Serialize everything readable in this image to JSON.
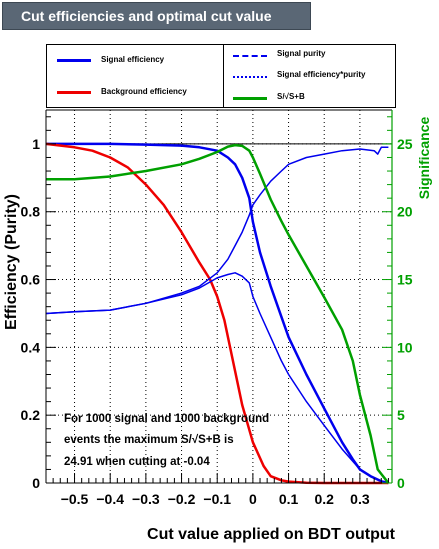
{
  "title": "Cut efficiencies and optimal cut value",
  "legend": {
    "signal_efficiency": "Signal efficiency",
    "background_efficiency": "Background efficiency",
    "signal_purity": "Signal purity",
    "signal_eff_purity": "Signal efficiency*purity",
    "significance": "S/√S+B"
  },
  "colors": {
    "signal": "#0000ee",
    "background": "#ee0000",
    "significance": "#00a000"
  },
  "annotation": [
    "For 1000 signal and 1000 background",
    "events the maximum S/√S+B is",
    "24.91 when cutting at -0.04"
  ],
  "chart_data": {
    "type": "line",
    "xlabel": "Cut value applied on BDT output",
    "ylabel": "Efficiency (Purity)",
    "y2label": "Significance",
    "xlim": [
      -0.58,
      0.39
    ],
    "ylim": [
      0,
      1.1
    ],
    "y2lim": [
      0,
      27.5
    ],
    "x_ticks": [
      "−0.5",
      "−0.4",
      "−0.3",
      "−0.2",
      "−0.1",
      "0",
      "0.1",
      "0.2",
      "0.3"
    ],
    "x_tick_values": [
      -0.5,
      -0.4,
      -0.3,
      -0.2,
      -0.1,
      0,
      0.1,
      0.2,
      0.3
    ],
    "y_ticks": [
      "0",
      "0.2",
      "0.4",
      "0.6",
      "0.8",
      "1"
    ],
    "y_tick_values": [
      0,
      0.2,
      0.4,
      0.6,
      0.8,
      1
    ],
    "y2_ticks": [
      "0",
      "5",
      "10",
      "15",
      "20",
      "25"
    ],
    "y2_tick_values": [
      0,
      5,
      10,
      15,
      20,
      25
    ],
    "grid": true,
    "series": [
      {
        "name": "Signal efficiency",
        "axis": "left",
        "x": [
          -0.58,
          -0.4,
          -0.3,
          -0.2,
          -0.15,
          -0.1,
          -0.07,
          -0.05,
          -0.03,
          -0.01,
          0.0,
          0.02,
          0.05,
          0.08,
          0.1,
          0.15,
          0.2,
          0.25,
          0.28,
          0.3,
          0.33,
          0.36,
          0.38
        ],
        "y": [
          1.0,
          1.0,
          0.998,
          0.995,
          0.99,
          0.98,
          0.96,
          0.94,
          0.9,
          0.84,
          0.77,
          0.68,
          0.58,
          0.49,
          0.43,
          0.32,
          0.22,
          0.12,
          0.07,
          0.04,
          0.02,
          0.005,
          0.0
        ]
      },
      {
        "name": "Background efficiency",
        "axis": "left",
        "x": [
          -0.58,
          -0.5,
          -0.45,
          -0.4,
          -0.35,
          -0.3,
          -0.25,
          -0.2,
          -0.15,
          -0.12,
          -0.1,
          -0.08,
          -0.05,
          -0.03,
          0.0,
          0.03,
          0.05,
          0.08,
          0.1,
          0.15,
          0.2,
          0.38
        ],
        "y": [
          1.0,
          0.99,
          0.98,
          0.96,
          0.93,
          0.88,
          0.82,
          0.74,
          0.65,
          0.6,
          0.55,
          0.48,
          0.33,
          0.23,
          0.12,
          0.05,
          0.02,
          0.008,
          0.004,
          0.001,
          0.0,
          0.0
        ]
      },
      {
        "name": "Signal purity",
        "axis": "left",
        "x": [
          -0.58,
          -0.5,
          -0.4,
          -0.3,
          -0.2,
          -0.15,
          -0.1,
          -0.07,
          -0.05,
          -0.03,
          -0.01,
          0.0,
          0.02,
          0.05,
          0.08,
          0.1,
          0.15,
          0.2,
          0.25,
          0.3,
          0.34,
          0.35,
          0.36,
          0.38
        ],
        "y": [
          0.5,
          0.505,
          0.51,
          0.53,
          0.56,
          0.58,
          0.62,
          0.66,
          0.7,
          0.74,
          0.79,
          0.82,
          0.85,
          0.89,
          0.92,
          0.94,
          0.96,
          0.97,
          0.98,
          0.985,
          0.98,
          0.97,
          0.99,
          0.99
        ]
      },
      {
        "name": "Signal efficiency*purity",
        "axis": "left",
        "x": [
          -0.58,
          -0.5,
          -0.4,
          -0.3,
          -0.2,
          -0.15,
          -0.1,
          -0.07,
          -0.05,
          -0.03,
          -0.01,
          0.0,
          0.02,
          0.05,
          0.08,
          0.1,
          0.15,
          0.2,
          0.25,
          0.3,
          0.33,
          0.36,
          0.38
        ],
        "y": [
          0.5,
          0.505,
          0.51,
          0.53,
          0.555,
          0.575,
          0.605,
          0.615,
          0.62,
          0.61,
          0.59,
          0.55,
          0.5,
          0.43,
          0.36,
          0.32,
          0.24,
          0.17,
          0.1,
          0.04,
          0.02,
          0.005,
          0.0
        ]
      },
      {
        "name": "S/√S+B",
        "axis": "right",
        "x": [
          -0.58,
          -0.5,
          -0.4,
          -0.3,
          -0.2,
          -0.15,
          -0.1,
          -0.07,
          -0.05,
          -0.03,
          -0.01,
          0.0,
          0.02,
          0.05,
          0.08,
          0.1,
          0.15,
          0.2,
          0.25,
          0.28,
          0.3,
          0.33,
          0.35,
          0.38
        ],
        "y": [
          22.4,
          22.4,
          22.6,
          23.0,
          23.5,
          23.9,
          24.4,
          24.8,
          24.91,
          24.85,
          24.5,
          24.0,
          22.8,
          20.9,
          19.3,
          18.3,
          16.0,
          13.7,
          11.3,
          9.0,
          6.5,
          3.5,
          1.0,
          0.0
        ]
      }
    ]
  }
}
